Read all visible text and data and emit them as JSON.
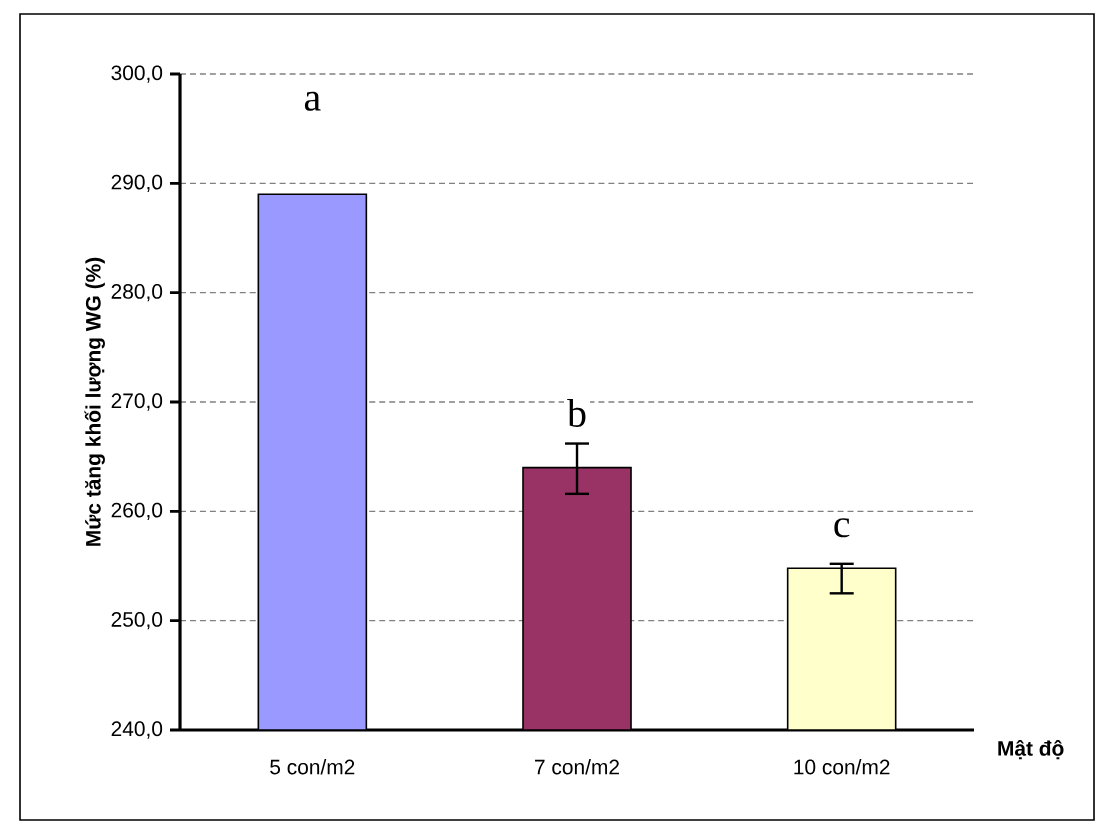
{
  "chart_data": {
    "type": "bar",
    "xlabel": "Mật độ",
    "ylabel": "Mức tăng khối lượng WG (%)",
    "categories": [
      "5 con/m2",
      "7 con/m2",
      "10 con/m2"
    ],
    "values": [
      289.0,
      264.0,
      254.8
    ],
    "colors": [
      "#9999ff",
      "#993366",
      "#ffffcc"
    ],
    "errors": [
      null,
      [
        261.6,
        266.2
      ],
      [
        252.5,
        255.2
      ]
    ],
    "ylim": [
      240,
      300
    ],
    "yticks": [
      {
        "value": 240,
        "label": "240,0"
      },
      {
        "value": 250,
        "label": "250,0"
      },
      {
        "value": 260,
        "label": "260,0"
      },
      {
        "value": 270,
        "label": "270,0"
      },
      {
        "value": 280,
        "label": "280,0"
      },
      {
        "value": 290,
        "label": "290,0"
      },
      {
        "value": 300,
        "label": "300,0"
      }
    ],
    "grid": "y",
    "annotations": [
      {
        "text": "a",
        "x": "5 con/m2",
        "y": 297.5
      },
      {
        "text": "b",
        "x": "7 con/m2",
        "y": 269
      },
      {
        "text": "c",
        "x": "10 con/m2",
        "y": 258.5
      }
    ]
  }
}
